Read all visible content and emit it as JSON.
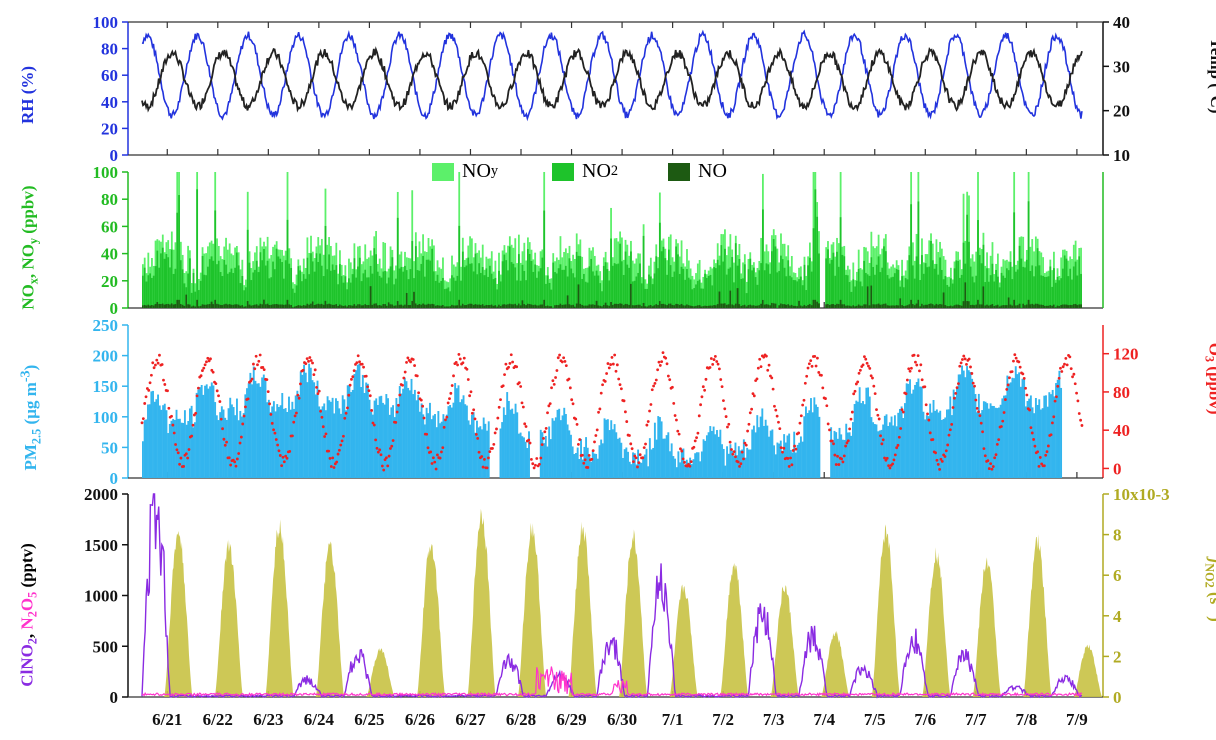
{
  "x_axis": {
    "ticks": [
      "6/21",
      "6/22",
      "6/23",
      "6/24",
      "6/25",
      "6/26",
      "6/27",
      "6/28",
      "6/29",
      "6/30",
      "7/1",
      "7/2",
      "7/3",
      "7/4",
      "7/5",
      "7/6",
      "7/7",
      "7/8",
      "7/9"
    ]
  },
  "colors": {
    "rh": "#2233dd",
    "temp": "#222222",
    "noy": "#5cf06a",
    "no2": "#1ec32b",
    "no": "#1d5a12",
    "pm": "#33b5ee",
    "o3": "#ee2222",
    "clno2": "#8a2be2",
    "n2o5": "#ff33cc",
    "jno2": "#c8c244",
    "axis_green": "#22bb22",
    "axis_olive": "#b0aa22"
  },
  "chart_data": [
    {
      "type": "line",
      "panel": "top",
      "series": [
        {
          "name": "RH",
          "axis": "left"
        },
        {
          "name": "Temp",
          "axis": "right"
        }
      ],
      "ylabel_left": "RH (%)",
      "ylabel_right": "Temp (°C)",
      "ylim_left": [
        0,
        100
      ],
      "yticks_left": [
        "0",
        "20",
        "40",
        "60",
        "80",
        "100"
      ],
      "ylim_right": [
        10,
        40
      ],
      "yticks_right": [
        "10",
        "20",
        "30",
        "40"
      ],
      "grid": false
    },
    {
      "type": "area",
      "panel": "second",
      "legend": [
        "NOy",
        "NO2",
        "NO"
      ],
      "legend_placement": "top-center",
      "ylabel_left": "NOx, NOy (ppbv)",
      "ylim_left": [
        0,
        100
      ],
      "yticks_left": [
        "0",
        "20",
        "40",
        "60",
        "80",
        "100"
      ],
      "grid": false
    },
    {
      "type": "area",
      "panel": "third",
      "series": [
        {
          "name": "PM2.5",
          "axis": "left"
        },
        {
          "name": "O3",
          "axis": "right"
        }
      ],
      "ylabel_left": "PM2.5 (µg m-3)",
      "ylabel_right": "O3 (ppbv)",
      "ylim_left": [
        0,
        250
      ],
      "yticks_left": [
        "0",
        "50",
        "100",
        "150",
        "200",
        "250"
      ],
      "ylim_right": [
        -10,
        150
      ],
      "yticks_right": [
        "0",
        "40",
        "80",
        "120"
      ],
      "grid": false
    },
    {
      "type": "area",
      "panel": "bottom",
      "series": [
        {
          "name": "ClNO2",
          "axis": "left"
        },
        {
          "name": "N2O5",
          "axis": "left"
        },
        {
          "name": "jNO2",
          "axis": "right"
        }
      ],
      "ylabel_left": "ClNO2, N2O5 (pptv)",
      "ylabel_right": "jNO2 (s-1)",
      "ylim_left": [
        0,
        2100
      ],
      "yticks_left": [
        "0",
        "500",
        "1000",
        "1500",
        "2000"
      ],
      "ylim_right": [
        0,
        0.01
      ],
      "yticks_right": [
        "0",
        "2",
        "4",
        "6",
        "8",
        "10x10-3"
      ],
      "grid": false
    }
  ],
  "legend_labels": {
    "noy_main": "NO",
    "noy_sub": "y",
    "no2_main": "NO",
    "no2_sub": "2",
    "no_main": "NO"
  }
}
